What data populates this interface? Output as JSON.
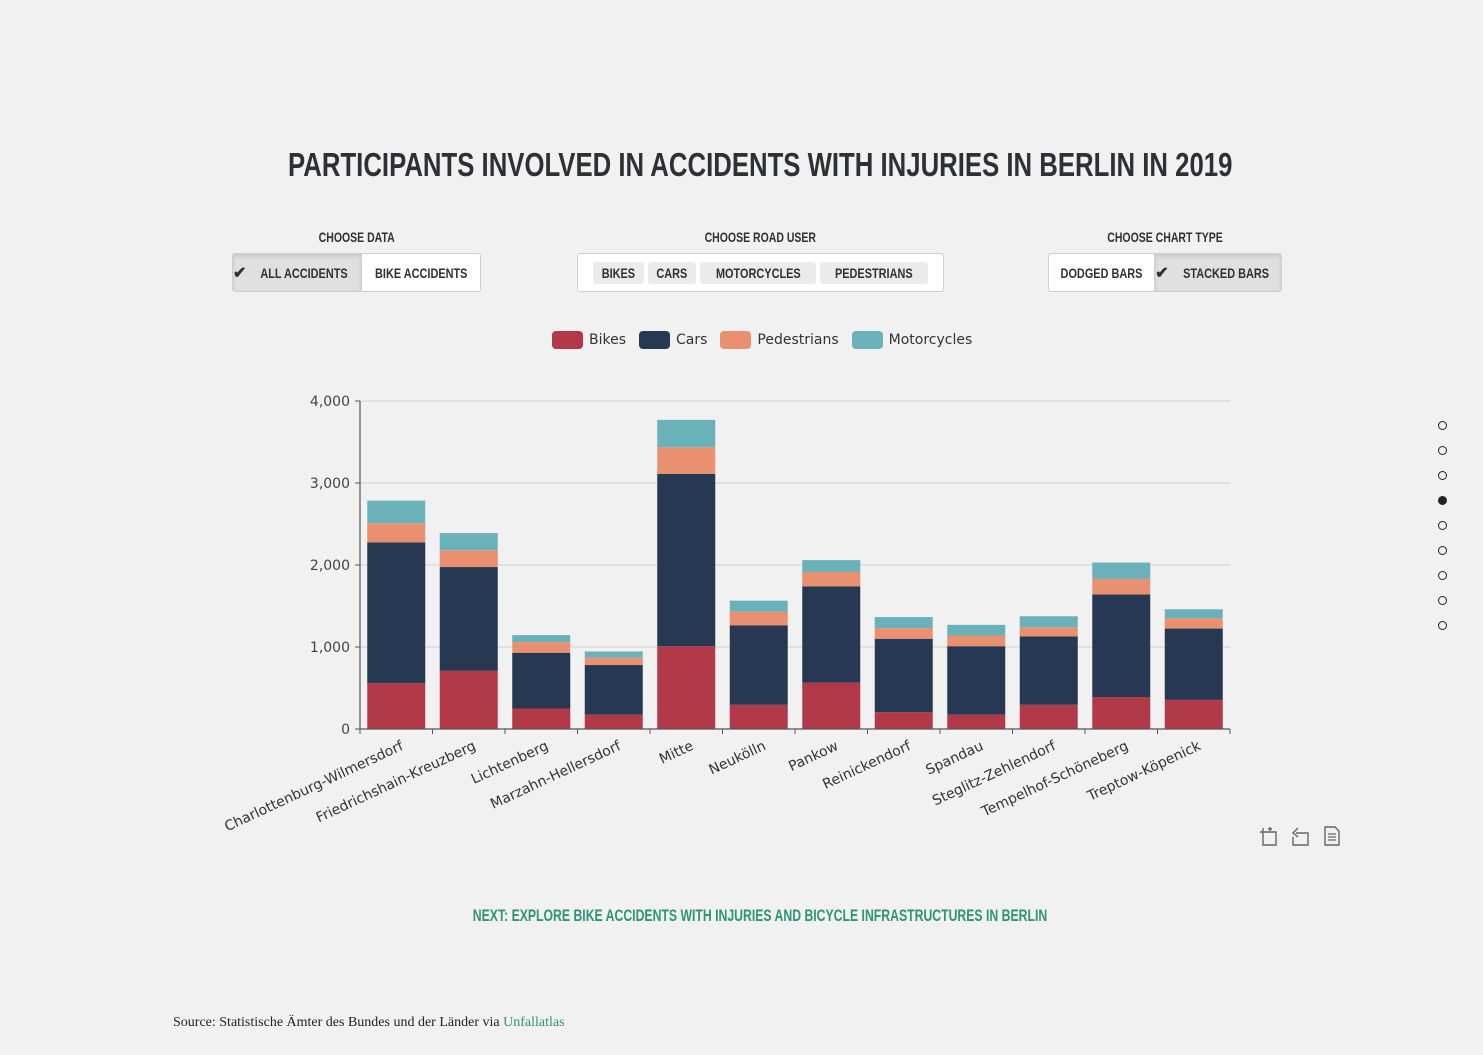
{
  "title": "Participants involved in accidents with injuries in Berlin in 2019",
  "controls": {
    "data": {
      "label": "Choose Data",
      "options": [
        "All Accidents",
        "Bike Accidents"
      ],
      "selected": "All Accidents"
    },
    "road_user": {
      "label": "Choose Road User",
      "options": [
        "Bikes",
        "Cars",
        "Motorcycles",
        "Pedestrians"
      ]
    },
    "chart_type": {
      "label": "Choose Chart Type",
      "options": [
        "Dodged Bars",
        "Stacked Bars"
      ],
      "selected": "Stacked Bars"
    }
  },
  "legend": [
    {
      "name": "Bikes",
      "color": "#b23a48"
    },
    {
      "name": "Cars",
      "color": "#263852"
    },
    {
      "name": "Pedestrians",
      "color": "#e99071"
    },
    {
      "name": "Motorcycles",
      "color": "#6bb1ba"
    }
  ],
  "chart_data": {
    "type": "bar",
    "stacked": true,
    "categories": [
      "Charlottenburg-Wilmersdorf",
      "Friedrichshain-Kreuzberg",
      "Lichtenberg",
      "Marzahn-Hellersdorf",
      "Mitte",
      "Neukölln",
      "Pankow",
      "Reinickendorf",
      "Spandau",
      "Steglitz-Zehlendorf",
      "Tempelhof-Schöneberg",
      "Treptow-Köpenick"
    ],
    "series": [
      {
        "name": "Bikes",
        "color": "#b23a48",
        "values": [
          560,
          710,
          250,
          175,
          1010,
          295,
          565,
          205,
          175,
          295,
          390,
          355
        ]
      },
      {
        "name": "Cars",
        "color": "#263852",
        "values": [
          1715,
          1265,
          680,
          605,
          2100,
          970,
          1175,
          895,
          835,
          835,
          1250,
          870
        ]
      },
      {
        "name": "Pedestrians",
        "color": "#e99071",
        "values": [
          235,
          205,
          130,
          90,
          325,
          165,
          175,
          130,
          130,
          110,
          190,
          125
        ]
      },
      {
        "name": "Motorcycles",
        "color": "#6bb1ba",
        "values": [
          275,
          210,
          85,
          75,
          335,
          135,
          145,
          135,
          130,
          135,
          200,
          110
        ]
      }
    ],
    "y_ticks": [
      "0",
      "1,000",
      "2,000",
      "3,000",
      "4,000"
    ],
    "ylim": [
      0,
      4000
    ],
    "grid": true,
    "legend_position": "top"
  },
  "toolbox": [
    "zoom-icon",
    "restore-icon",
    "data-view-icon"
  ],
  "navigation": {
    "dot_count": 9,
    "active_index": 3
  },
  "next_link": "Next: Explore bike accidents with injuries and bicycle infrastructures in Berlin",
  "source": {
    "prefix": "Source: Statistische Ämter des Bundes und der Länder via ",
    "link_text": "Unfallatlas"
  }
}
